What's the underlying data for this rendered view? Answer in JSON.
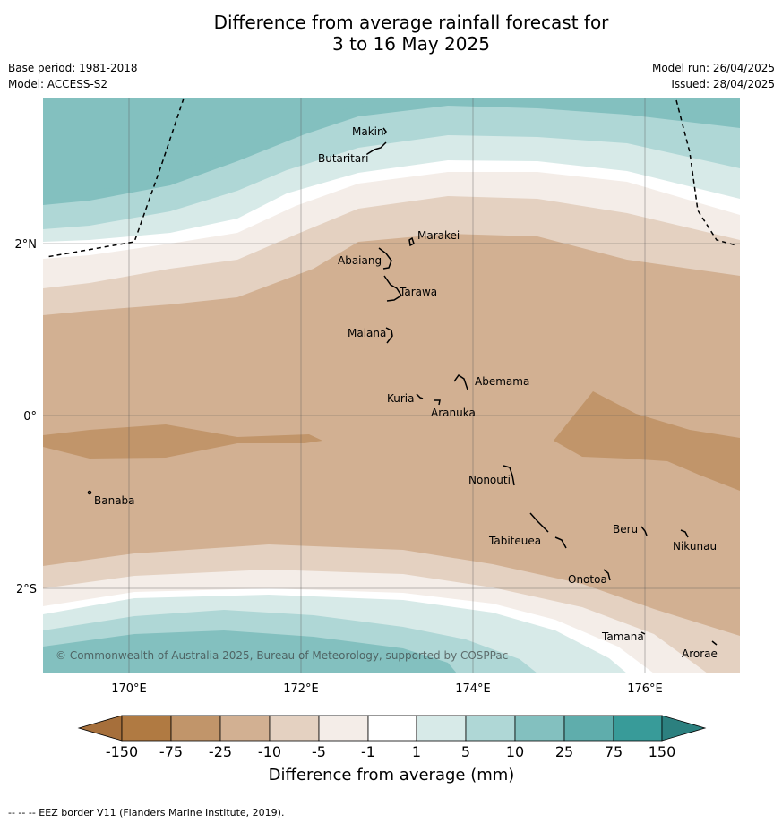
{
  "title": {
    "line1": "Difference from average rainfall forecast for",
    "line2": "3 to 16 May 2025"
  },
  "meta": {
    "base_period": "Base period: 1981-2018",
    "model": "Model: ACCESS-S2",
    "model_run": "Model run: 26/04/2025",
    "issued": "Issued: 28/04/2025"
  },
  "axes": {
    "lat_ticks": [
      "2°N",
      "0°",
      "2°S"
    ],
    "lon_ticks": [
      "170°E",
      "172°E",
      "174°E",
      "176°E"
    ]
  },
  "places": [
    {
      "name": "Makin"
    },
    {
      "name": "Butaritari"
    },
    {
      "name": "Marakei"
    },
    {
      "name": "Abaiang"
    },
    {
      "name": "Tarawa"
    },
    {
      "name": "Maiana"
    },
    {
      "name": "Abemama"
    },
    {
      "name": "Kuria"
    },
    {
      "name": "Aranuka"
    },
    {
      "name": "Nonouti"
    },
    {
      "name": "Banaba"
    },
    {
      "name": "Tabiteuea"
    },
    {
      "name": "Beru"
    },
    {
      "name": "Nikunau"
    },
    {
      "name": "Onotoa"
    },
    {
      "name": "Tamana"
    },
    {
      "name": "Arorae"
    }
  ],
  "copyright": "© Commonwealth of Australia 2025, Bureau of Meteorology, supported by COSPPac",
  "colorbar": {
    "bounds": [
      "-150",
      "-75",
      "-25",
      "-10",
      "-5",
      "-1",
      "1",
      "5",
      "10",
      "25",
      "75",
      "150"
    ],
    "colors": {
      "lt_minus150": "#a66f3b",
      "m150_m75": "#b07a42",
      "m75_m25": "#c1956a",
      "m25_m10": "#d2b092",
      "m10_m5": "#e4d1c1",
      "m5_m1": "#f4ede8",
      "m1_p1": "#ffffff",
      "p1_p5": "#d7eae8",
      "p5_p10": "#afd7d6",
      "p10_p25": "#83c0bf",
      "p25_p75": "#5fadac",
      "p75_p150": "#389b99",
      "gt_150": "#2c807f"
    },
    "label": "Difference from average (mm)"
  },
  "footer": "--  --  -- EEZ border V11 (Flanders Marine Institute, 2019)."
}
